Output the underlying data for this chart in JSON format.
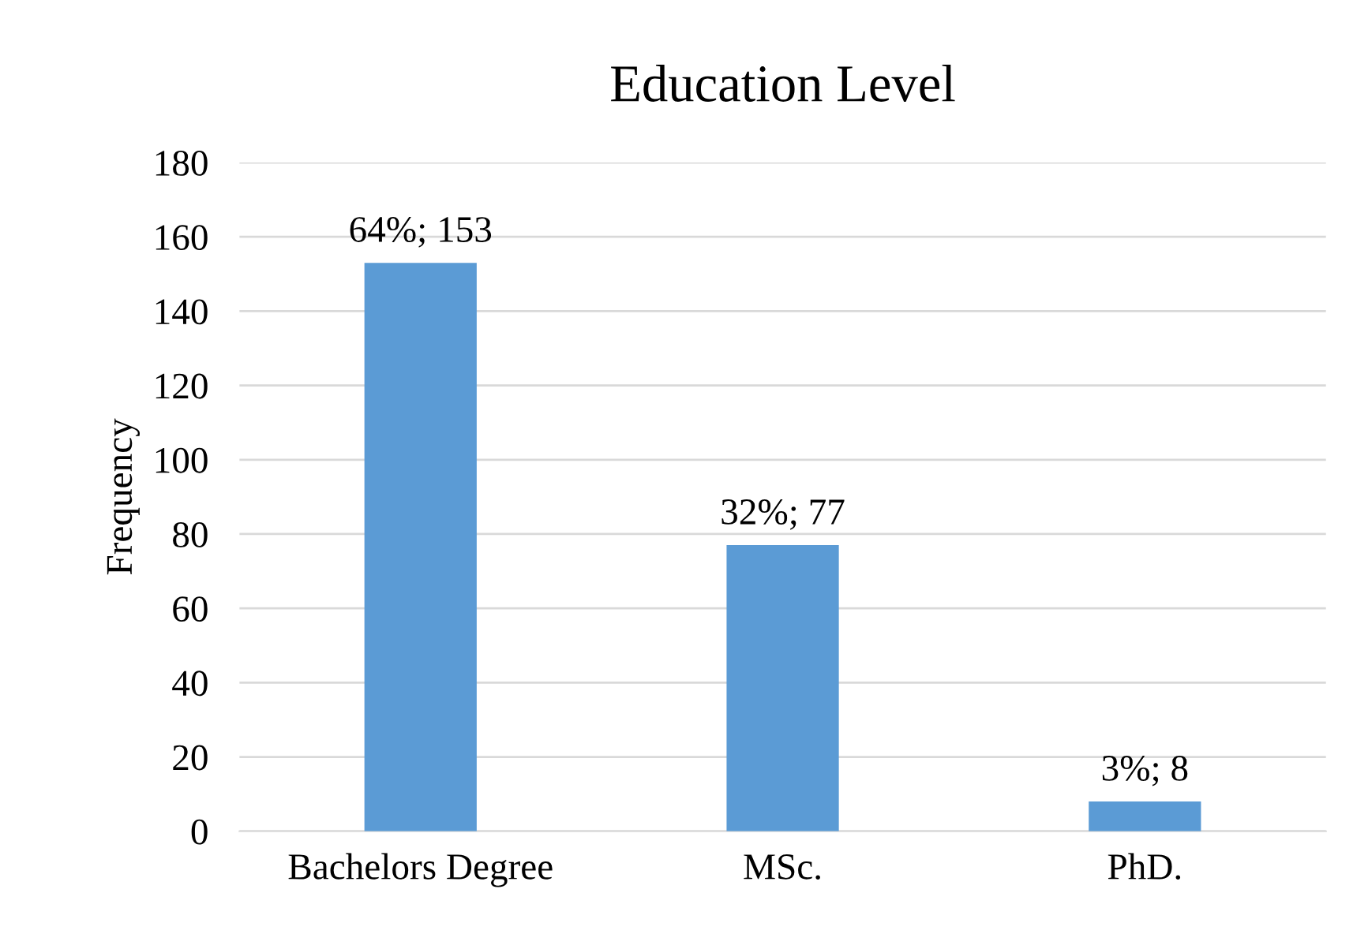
{
  "chart_data": {
    "type": "bar",
    "title": "Education Level",
    "ylabel": "Frequency",
    "categories": [
      "Bachelors Degree",
      "MSc.",
      "PhD."
    ],
    "values": [
      153,
      77,
      8
    ],
    "value_labels": [
      "64%; 153",
      "32%; 77",
      "3%; 8"
    ],
    "color": "#5b9bd5",
    "ylim": [
      0,
      180
    ],
    "yticks": [
      0,
      20,
      40,
      60,
      80,
      100,
      120,
      140,
      160,
      180
    ],
    "grid": "y",
    "legend": false
  }
}
